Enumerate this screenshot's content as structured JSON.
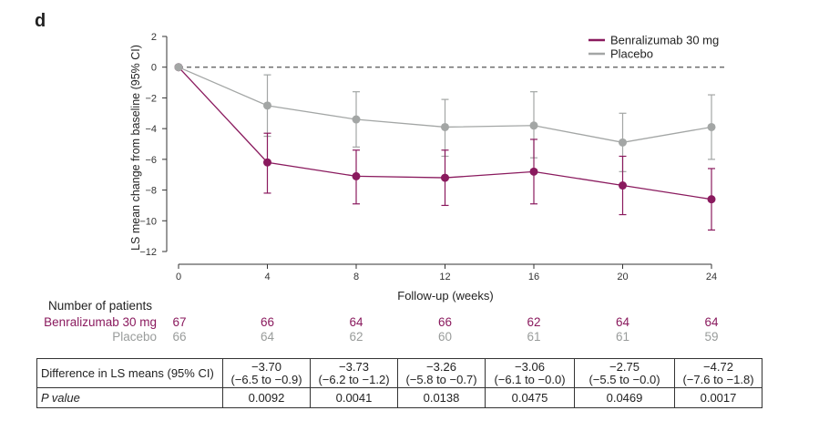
{
  "panel_letter": "d",
  "colors": {
    "benralizumab": "#8a1a5e",
    "placebo": "#a3a6a5",
    "axis": "#333333"
  },
  "chart_data": {
    "type": "line",
    "title": "",
    "xlabel": "Follow-up (weeks)",
    "ylabel": "LS mean change from baseline (95% CI)",
    "x": [
      0,
      4,
      8,
      12,
      16,
      20,
      24
    ],
    "xticks": [
      "0",
      "4",
      "8",
      "12",
      "16",
      "20",
      "24"
    ],
    "xlim": [
      0,
      24
    ],
    "yticks": [
      "2",
      "0",
      "−2",
      "−4",
      "−6",
      "−8",
      "−10",
      "−12"
    ],
    "ylim": [
      -12,
      2
    ],
    "reference_line_y": 0,
    "legend_position": "top-right",
    "series": [
      {
        "name": "Benralizumab 30 mg",
        "values": [
          0,
          -6.2,
          -7.1,
          -7.2,
          -6.8,
          -7.7,
          -8.6
        ],
        "ci_low": [
          0,
          -8.2,
          -8.9,
          -9.0,
          -8.9,
          -9.6,
          -10.6
        ],
        "ci_high": [
          0,
          -4.3,
          -5.4,
          -5.4,
          -4.7,
          -5.8,
          -6.6
        ]
      },
      {
        "name": "Placebo",
        "values": [
          0,
          -2.5,
          -3.4,
          -3.9,
          -3.8,
          -4.9,
          -3.9
        ],
        "ci_low": [
          0,
          -4.5,
          -5.2,
          -5.8,
          -5.9,
          -6.8,
          -6.0
        ],
        "ci_high": [
          0,
          -0.5,
          -1.6,
          -2.1,
          -1.6,
          -3.0,
          -1.8
        ]
      }
    ]
  },
  "patients": {
    "title": "Number of patients",
    "benralizumab_label": "Benralizumab 30 mg",
    "placebo_label": "Placebo",
    "benralizumab_counts": [
      "67",
      "66",
      "64",
      "66",
      "62",
      "64",
      "64"
    ],
    "placebo_counts": [
      "66",
      "64",
      "62",
      "60",
      "61",
      "61",
      "59"
    ]
  },
  "table": {
    "row1_label": "Difference in LS means (95% CI)",
    "row2_label": "P value",
    "differences": [
      {
        "estimate": "−3.70",
        "ci": "(−6.5 to −0.9)"
      },
      {
        "estimate": "−3.73",
        "ci": "(−6.2 to −1.2)"
      },
      {
        "estimate": "−3.26",
        "ci": "(−5.8 to −0.7)"
      },
      {
        "estimate": "−3.06",
        "ci": "(−6.1 to −0.0)"
      },
      {
        "estimate": "−2.75",
        "ci": "(−5.5 to −0.0)"
      },
      {
        "estimate": "−4.72",
        "ci": "(−7.6 to −1.8)"
      }
    ],
    "p_values": [
      "0.0092",
      "0.0041",
      "0.0138",
      "0.0475",
      "0.0469",
      "0.0017"
    ]
  }
}
